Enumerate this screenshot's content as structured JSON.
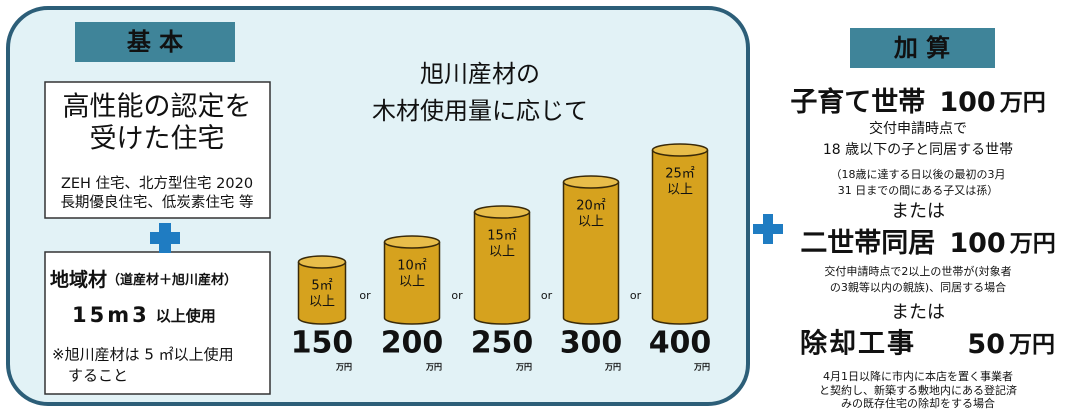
{
  "basic": {
    "tab": "基 本",
    "heading": [
      "高性能の認定を",
      "受けた住宅"
    ],
    "examples": [
      "ZEH 住宅、北方型住宅 2020",
      "長期優良住宅、低炭素住宅 等"
    ],
    "local": {
      "title": "地域材",
      "title_note": "（道産材＋旭川産材）",
      "amount": "15m3",
      "amount_suffix": "以上使用",
      "note": [
        "※旭川産材は 5 ㎡以上使用",
        "すること"
      ]
    }
  },
  "volume": {
    "title": [
      "旭川産材の",
      "木材使用量に応じて"
    ],
    "separator": "or",
    "unit": "万円",
    "tiers": [
      {
        "volume": "5㎡",
        "min_label": "以上",
        "amount": "150"
      },
      {
        "volume": "10㎡",
        "min_label": "以上",
        "amount": "200"
      },
      {
        "volume": "15㎡",
        "min_label": "以上",
        "amount": "250"
      },
      {
        "volume": "20㎡",
        "min_label": "以上",
        "amount": "300"
      },
      {
        "volume": "25㎡",
        "min_label": "以上",
        "amount": "400"
      }
    ]
  },
  "bonus": {
    "tab": "加 算",
    "connector": "または",
    "items": [
      {
        "name": "子育て世帯",
        "amount": "100",
        "unit": "万円",
        "conditions": [
          "交付申請時点で",
          "18 歳以下の子と同居する世帯"
        ],
        "notes": [
          "（18歳に達する日以後の最初の3月",
          "31 日までの間にある子又は孫）"
        ]
      },
      {
        "name": "二世帯同居",
        "amount": "100",
        "unit": "万円",
        "conditions": [
          "交付申請時点で2以上の世帯が(対象者",
          "の3親等以内の親族)、同居する場合"
        ]
      },
      {
        "name": "除却工事",
        "amount": "50",
        "unit": "万円",
        "conditions": [
          "4月1日以降に市内に本店を置く事業者",
          "と契約し、新築する敷地内にある登記済",
          "みの既存住宅の除却をする場合"
        ]
      }
    ]
  }
}
